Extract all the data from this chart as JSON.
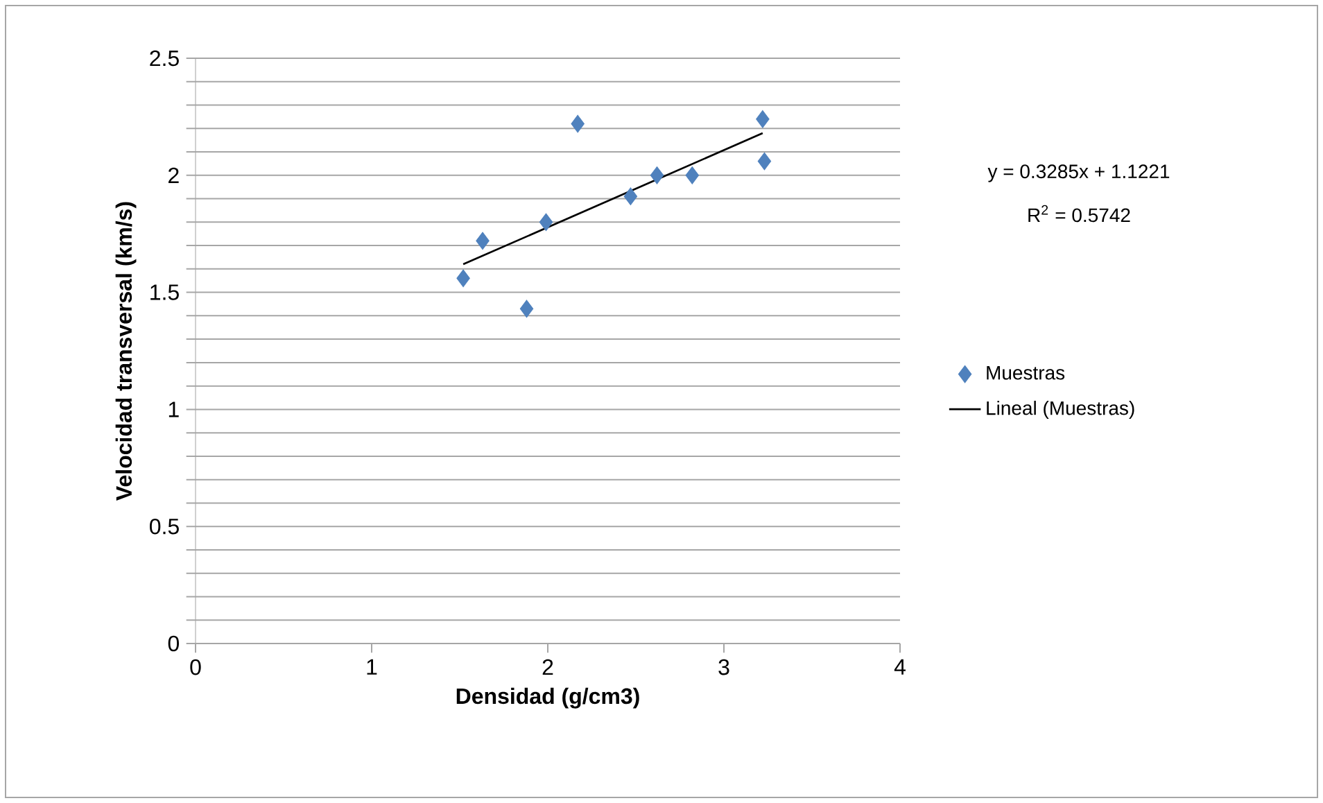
{
  "chart_data": {
    "type": "scatter",
    "xlabel": "Densidad (g/cm3)",
    "ylabel": "Velocidad transversal (km/s)",
    "xlim": [
      0,
      4
    ],
    "xticks": [
      0,
      1,
      2,
      3,
      4
    ],
    "ylim": [
      0,
      2.5
    ],
    "yticks": [
      0,
      {
        "value": 0.1,
        "label": null
      },
      {
        "value": 0.2,
        "label": null
      },
      {
        "value": 0.3,
        "label": null
      },
      {
        "value": 0.4,
        "label": null
      },
      0.5,
      {
        "value": 0.6,
        "label": null
      },
      {
        "value": 0.7,
        "label": null
      },
      {
        "value": 0.8,
        "label": null
      },
      {
        "value": 0.9,
        "label": null
      },
      1,
      {
        "value": 1.1,
        "label": null
      },
      {
        "value": 1.2,
        "label": null
      },
      {
        "value": 1.3,
        "label": null
      },
      {
        "value": 1.4,
        "label": null
      },
      1.5,
      {
        "value": 1.6,
        "label": null
      },
      {
        "value": 1.7,
        "label": null
      },
      {
        "value": 1.8,
        "label": null
      },
      {
        "value": 1.9,
        "label": null
      },
      2,
      {
        "value": 2.1,
        "label": null
      },
      {
        "value": 2.2,
        "label": null
      },
      {
        "value": 2.3,
        "label": null
      },
      {
        "value": 2.4,
        "label": null
      },
      2.5
    ],
    "grid": "y",
    "legend": "right",
    "series": [
      {
        "name": "Muestras",
        "marker": "diamond",
        "color": "#4f81bd",
        "x": [
          1.52,
          1.63,
          1.88,
          1.99,
          2.17,
          2.47,
          2.62,
          2.82,
          3.22,
          3.23
        ],
        "values": [
          1.56,
          1.72,
          1.43,
          1.8,
          2.22,
          1.91,
          2.0,
          2.0,
          2.24,
          2.06
        ]
      },
      {
        "name": "Lineal (Muestras)",
        "type": "line",
        "color": "#000000",
        "x": [
          1.52,
          3.22
        ],
        "values": [
          1.62,
          2.18
        ]
      }
    ],
    "annotations": [
      "y = 0.3285x + 1.1221",
      "R$^{2}$ = 0.5742"
    ]
  }
}
